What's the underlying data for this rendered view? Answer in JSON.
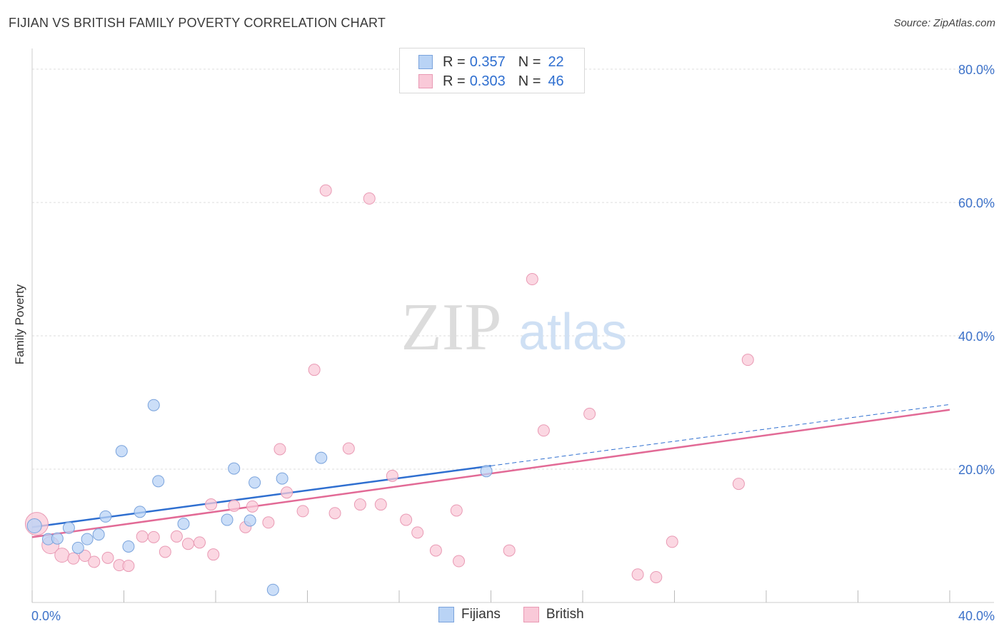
{
  "title": "FIJIAN VS BRITISH FAMILY POVERTY CORRELATION CHART",
  "source": "Source: ZipAtlas.com",
  "watermark": {
    "zip": "ZIP",
    "atlas": "atlas"
  },
  "legend_top": {
    "rows": [
      {
        "r_label": "R =",
        "r_value": "0.357",
        "n_label": "N =",
        "n_value": "22"
      },
      {
        "r_label": "R =",
        "r_value": "0.303",
        "n_label": "N =",
        "n_value": "46"
      }
    ]
  },
  "legend_bottom": {
    "items": [
      "Fijians",
      "British"
    ]
  },
  "colors": {
    "fijians_fill": "#b9d3f5",
    "fijians_stroke": "#7aa3dc",
    "fijians_line": "#2f6fd0",
    "british_fill": "#f9c9d8",
    "british_stroke": "#e99ab4",
    "british_line": "#e26a96",
    "tick_text": "#3d72c9"
  },
  "chart_data": {
    "type": "scatter",
    "title": "FIJIAN VS BRITISH FAMILY POVERTY CORRELATION CHART",
    "xlabel": "",
    "ylabel": "Family Poverty",
    "xlim": [
      0,
      40
    ],
    "ylim": [
      0,
      80
    ],
    "x_tick_labels": [
      "0.0%",
      "40.0%"
    ],
    "y_ticks": [
      20,
      40,
      60,
      80
    ],
    "y_tick_labels": [
      "20.0%",
      "40.0%",
      "60.0%",
      "80.0%"
    ],
    "grid": true,
    "series": [
      {
        "name": "Fijians",
        "points": [
          [
            0.1,
            11.5,
            10
          ],
          [
            0.7,
            9.5,
            8
          ],
          [
            1.1,
            9.6,
            8
          ],
          [
            1.6,
            11.2,
            8
          ],
          [
            2.0,
            8.2,
            8
          ],
          [
            2.4,
            9.5,
            8
          ],
          [
            2.9,
            10.2,
            8
          ],
          [
            3.2,
            12.9,
            8
          ],
          [
            3.9,
            22.7,
            8
          ],
          [
            4.2,
            8.4,
            8
          ],
          [
            4.7,
            13.6,
            8
          ],
          [
            5.3,
            29.6,
            8
          ],
          [
            5.5,
            18.2,
            8
          ],
          [
            6.6,
            11.8,
            8
          ],
          [
            8.5,
            12.4,
            8
          ],
          [
            8.8,
            20.1,
            8
          ],
          [
            9.5,
            12.3,
            8
          ],
          [
            9.7,
            18.0,
            8
          ],
          [
            10.5,
            1.9,
            8
          ],
          [
            10.9,
            18.6,
            8
          ],
          [
            12.6,
            21.7,
            8
          ],
          [
            19.8,
            19.7,
            8
          ]
        ],
        "trend": {
          "x": [
            0,
            20
          ],
          "y": [
            11.3,
            20.5
          ],
          "extended_x": [
            20,
            40
          ],
          "extended_y": [
            20.5,
            29.7
          ]
        }
      },
      {
        "name": "British",
        "points": [
          [
            0.2,
            11.8,
            16
          ],
          [
            0.8,
            8.6,
            12
          ],
          [
            1.3,
            7.1,
            10
          ],
          [
            1.8,
            6.6,
            8
          ],
          [
            2.3,
            7.0,
            8
          ],
          [
            2.7,
            6.1,
            8
          ],
          [
            3.3,
            6.7,
            8
          ],
          [
            3.8,
            5.6,
            8
          ],
          [
            4.2,
            5.5,
            8
          ],
          [
            4.8,
            9.9,
            8
          ],
          [
            5.3,
            9.8,
            8
          ],
          [
            5.8,
            7.6,
            8
          ],
          [
            6.3,
            9.9,
            8
          ],
          [
            6.8,
            8.8,
            8
          ],
          [
            7.3,
            9.0,
            8
          ],
          [
            7.9,
            7.2,
            8
          ],
          [
            7.8,
            14.7,
            8
          ],
          [
            8.8,
            14.5,
            8
          ],
          [
            9.3,
            11.3,
            8
          ],
          [
            9.6,
            14.4,
            8
          ],
          [
            10.3,
            12.0,
            8
          ],
          [
            10.8,
            23.0,
            8
          ],
          [
            11.1,
            16.5,
            8
          ],
          [
            11.8,
            13.7,
            8
          ],
          [
            12.3,
            34.9,
            8
          ],
          [
            12.8,
            61.8,
            8
          ],
          [
            13.2,
            13.4,
            8
          ],
          [
            13.8,
            23.1,
            8
          ],
          [
            14.3,
            14.7,
            8
          ],
          [
            14.7,
            60.6,
            8
          ],
          [
            15.2,
            14.7,
            8
          ],
          [
            15.7,
            19.0,
            8
          ],
          [
            16.3,
            12.4,
            8
          ],
          [
            16.8,
            10.5,
            8
          ],
          [
            17.6,
            7.8,
            8
          ],
          [
            18.6,
            6.2,
            8
          ],
          [
            18.5,
            13.8,
            8
          ],
          [
            20.8,
            7.8,
            8
          ],
          [
            21.8,
            48.5,
            8
          ],
          [
            22.3,
            25.8,
            8
          ],
          [
            24.3,
            28.3,
            8
          ],
          [
            26.4,
            4.2,
            8
          ],
          [
            27.2,
            3.8,
            8
          ],
          [
            27.9,
            9.1,
            8
          ],
          [
            30.8,
            17.8,
            8
          ],
          [
            31.2,
            36.4,
            8
          ]
        ],
        "trend": {
          "x": [
            0,
            40
          ],
          "y": [
            9.8,
            28.9
          ]
        }
      }
    ]
  }
}
